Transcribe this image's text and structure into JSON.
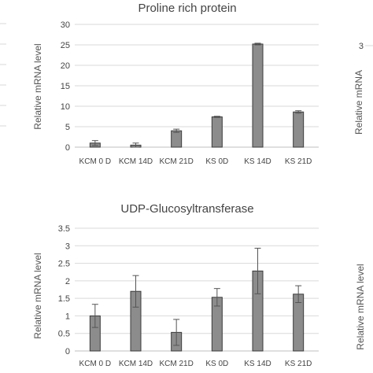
{
  "chart_data": [
    {
      "type": "bar",
      "title": "Proline rich protein",
      "ylabel": "Relative mRNA level",
      "xlabel": "",
      "ylim": [
        0,
        30
      ],
      "yticks": [
        "0",
        "5",
        "10",
        "15",
        "20",
        "25",
        "30"
      ],
      "categories": [
        "KCM 0 D",
        "KCM 14D",
        "KCM 21D",
        "KS 0D",
        "KS 14D",
        "KS 21D"
      ],
      "values": [
        1.0,
        0.5,
        4.0,
        7.4,
        25.2,
        8.6
      ],
      "error": [
        0.6,
        0.5,
        0.4,
        0.15,
        0.2,
        0.3
      ],
      "grid": true,
      "bar_color": "#8c8c8c",
      "bar_edge_color": "#3a3a3a"
    },
    {
      "type": "bar",
      "title": "UDP-Glucosyltransferase",
      "ylabel": "Relative mRNA level",
      "xlabel": "",
      "ylim": [
        0,
        3.5
      ],
      "yticks": [
        "0",
        "0.5",
        "1",
        "1.5",
        "2",
        "2.5",
        "3",
        "3.5"
      ],
      "categories": [
        "KCM 0 D",
        "KCM 14D",
        "KCM 21D",
        "KS 0D",
        "KS 14D",
        "KS 21D"
      ],
      "values": [
        1.0,
        1.7,
        0.53,
        1.53,
        2.28,
        1.62
      ],
      "error": [
        0.33,
        0.45,
        0.37,
        0.25,
        0.65,
        0.24
      ],
      "grid": true,
      "bar_color": "#8c8c8c",
      "bar_edge_color": "#3a3a3a"
    }
  ],
  "edge_fragments": {
    "right_top_ytick": "3",
    "right_top_ylabel": "Relative mRNA",
    "right_bottom_ylabel": "Relative mRNA level"
  }
}
